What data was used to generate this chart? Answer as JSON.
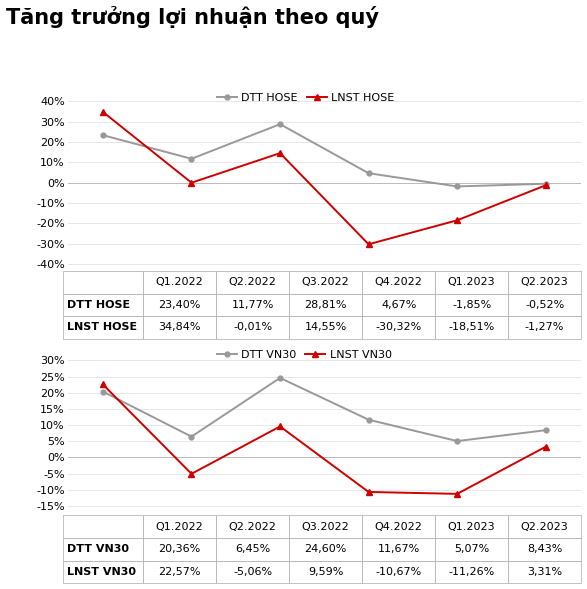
{
  "title": "Tăng trưởng lợi nhuận theo quý",
  "quarters": [
    "Q1.2022",
    "Q2.2022",
    "Q3.2022",
    "Q4.2022",
    "Q1.2023",
    "Q2.2023"
  ],
  "chart1": {
    "dtt": [
      23.4,
      11.77,
      28.81,
      4.67,
      -1.85,
      -0.52
    ],
    "lnst": [
      34.84,
      -0.01,
      14.55,
      -30.32,
      -18.51,
      -1.27
    ],
    "ylim": [
      -42,
      45
    ],
    "yticks": [
      -40,
      -30,
      -20,
      -10,
      0,
      10,
      20,
      30,
      40
    ],
    "legend1": "DTT HOSE",
    "legend2": "LNST HOSE",
    "table_col0": [
      "",
      "DTT HOSE",
      "LNST HOSE"
    ],
    "table_vals": [
      [
        "Q1.2022",
        "Q2.2022",
        "Q3.2022",
        "Q4.2022",
        "Q1.2023",
        "Q2.2023"
      ],
      [
        "23,40%",
        "11,77%",
        "28,81%",
        "4,67%",
        "-1,85%",
        "-0,52%"
      ],
      [
        "34,84%",
        "-0,01%",
        "14,55%",
        "-30,32%",
        "-18,51%",
        "-1,27%"
      ]
    ]
  },
  "chart2": {
    "dtt": [
      20.36,
      6.45,
      24.6,
      11.67,
      5.07,
      8.43
    ],
    "lnst": [
      22.57,
      -5.06,
      9.59,
      -10.67,
      -11.26,
      3.31
    ],
    "ylim": [
      -17,
      34
    ],
    "yticks": [
      -15,
      -10,
      -5,
      0,
      5,
      10,
      15,
      20,
      25,
      30
    ],
    "legend1": "DTT VN30",
    "legend2": "LNST VN30",
    "table_col0": [
      "",
      "DTT VN30",
      "LNST VN30"
    ],
    "table_vals": [
      [
        "Q1.2022",
        "Q2.2022",
        "Q3.2022",
        "Q4.2022",
        "Q1.2023",
        "Q2.2023"
      ],
      [
        "20,36%",
        "6,45%",
        "24,60%",
        "11,67%",
        "5,07%",
        "8,43%"
      ],
      [
        "22,57%",
        "-5,06%",
        "9,59%",
        "-10,67%",
        "-11,26%",
        "3,31%"
      ]
    ]
  },
  "gray_color": "#999999",
  "red_color": "#CC0000",
  "title_fontsize": 15,
  "axis_fontsize": 8,
  "table_fontsize": 8,
  "legend_fontsize": 8,
  "background_color": "#ffffff"
}
